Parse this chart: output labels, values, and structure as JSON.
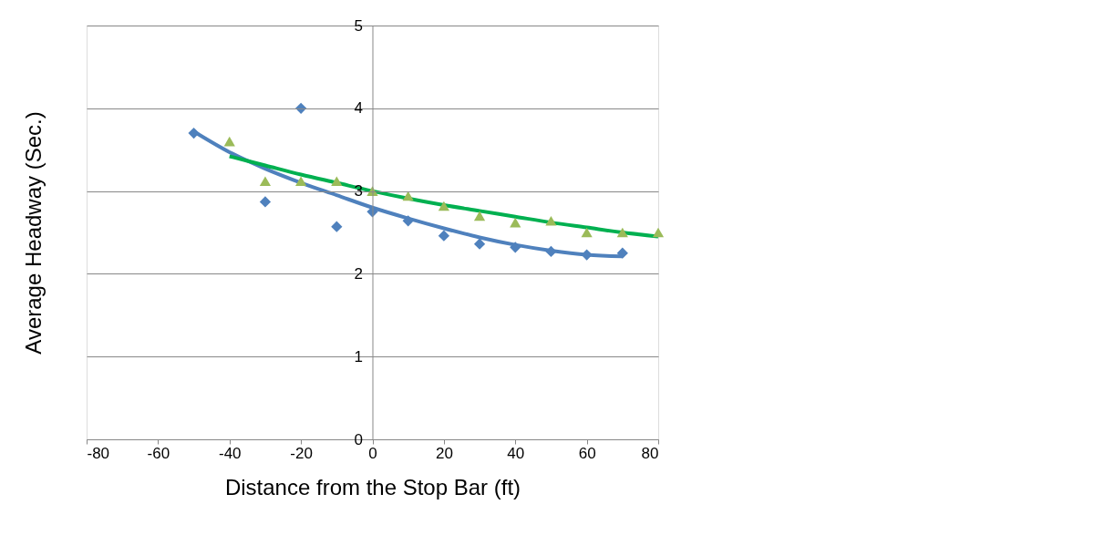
{
  "chart_data": {
    "type": "scatter",
    "xlabel": "Distance from the Stop Bar (ft)",
    "ylabel": "Average Headway (Sec.)",
    "xlim": [
      -80,
      80
    ],
    "xticks": [
      -80,
      -60,
      -40,
      -20,
      0,
      20,
      40,
      60,
      80
    ],
    "ylim": [
      0,
      5
    ],
    "yticks": [
      0,
      1,
      2,
      3,
      4,
      5
    ],
    "grid": "y",
    "series": [
      {
        "type": "line",
        "marker": "none",
        "color": "#4f81bd",
        "x": [
          -50,
          -40,
          -30,
          -20,
          -10,
          0,
          10,
          20,
          30,
          40,
          50,
          60,
          70
        ],
        "values": [
          3.72,
          3.47,
          3.27,
          3.1,
          2.95,
          2.8,
          2.67,
          2.55,
          2.44,
          2.35,
          2.28,
          2.23,
          2.21
        ]
      },
      {
        "type": "line",
        "marker": "none",
        "color": "#00b050",
        "x": [
          -40,
          -30,
          -20,
          -10,
          0,
          10,
          20,
          30,
          40,
          50,
          60,
          70,
          80
        ],
        "values": [
          3.42,
          3.31,
          3.2,
          3.1,
          3.0,
          2.91,
          2.83,
          2.76,
          2.69,
          2.62,
          2.56,
          2.5,
          2.45
        ]
      },
      {
        "marker": "diamond",
        "color": "#4f81bd",
        "x": [
          -50,
          -30,
          -20,
          -10,
          0,
          10,
          20,
          30,
          40,
          50,
          60,
          70
        ],
        "values": [
          3.7,
          2.87,
          4.0,
          2.57,
          2.75,
          2.64,
          2.46,
          2.36,
          2.32,
          2.27,
          2.23,
          2.25
        ]
      },
      {
        "marker": "triangle",
        "color": "#9bbb59",
        "x": [
          -40,
          -30,
          -20,
          -10,
          0,
          10,
          20,
          30,
          40,
          50,
          60,
          70,
          80
        ],
        "values": [
          3.6,
          3.12,
          3.12,
          3.12,
          3.0,
          2.94,
          2.82,
          2.7,
          2.62,
          2.64,
          2.5,
          2.5,
          2.5
        ]
      }
    ]
  }
}
